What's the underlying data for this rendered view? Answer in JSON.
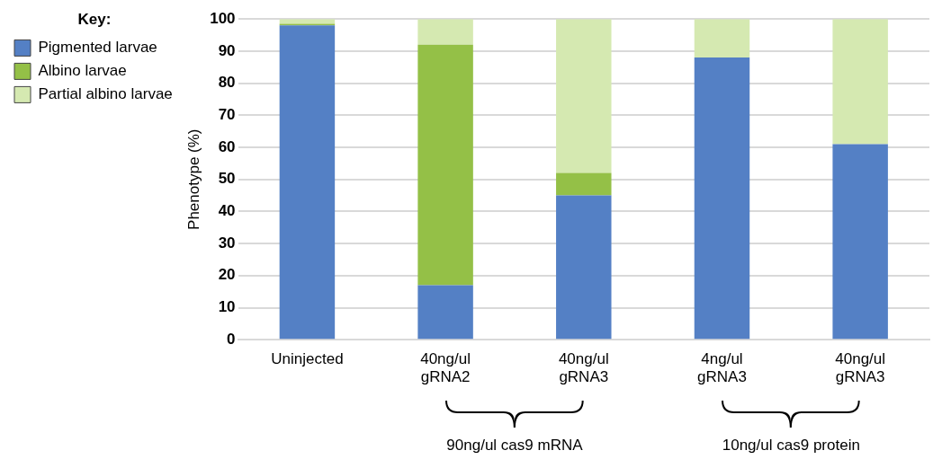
{
  "chart_data": {
    "type": "bar",
    "stacked": true,
    "ylabel": "Phenotype (%)",
    "legend_title": "Key:",
    "legend": "top left",
    "grid": "y",
    "categories": [
      "Uninjected",
      "40ng/ul\ngRNA2",
      "40ng/ul\ngRNA3",
      "4ng/ul\ngRNA3",
      "40ng/ul\ngRNA3"
    ],
    "series": [
      {
        "name": "Pigmented larvae",
        "color": "#5480c5",
        "values": [
          98,
          17,
          45,
          88,
          61
        ]
      },
      {
        "name": "Albino larvae",
        "color": "#94c047",
        "values": [
          0.5,
          75,
          7,
          0,
          0
        ]
      },
      {
        "name": "Partial albino larvae",
        "color": "#d5e9b1",
        "values": [
          1.5,
          8,
          48,
          12,
          39
        ]
      }
    ],
    "ylim": [
      0,
      100
    ],
    "yticks": [
      0,
      10,
      20,
      30,
      40,
      50,
      60,
      70,
      80,
      90,
      100
    ],
    "annotations": [
      "90ng/ul cas9 mRNA",
      "10ng/ul cas9 protein"
    ]
  }
}
